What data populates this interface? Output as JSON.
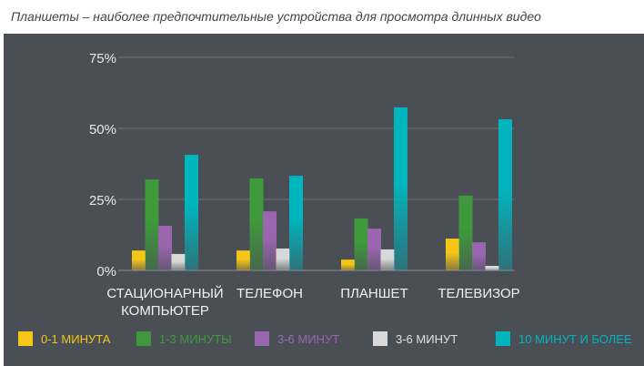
{
  "chart_data": {
    "type": "bar",
    "title": "Планшеты – наиболее предпочтительные устройства для просмотра длинных видео",
    "categories": [
      [
        "СТАЦИОНАРНЫЙ",
        "КОМПЬЮТЕР"
      ],
      [
        "ТЕЛЕФОН"
      ],
      [
        "ПЛАНШЕТ"
      ],
      [
        "ТЕЛЕВИЗОР"
      ]
    ],
    "ylim": [
      0,
      75
    ],
    "yticks": [
      0,
      25,
      50,
      75
    ],
    "ytick_labels": [
      "0%",
      "25%",
      "50%",
      "75%"
    ],
    "grid": true,
    "legend_position": "bottom",
    "series": [
      {
        "name": "0-1 МИНУТА",
        "color": "#f5c518",
        "values": [
          7,
          7,
          3.8,
          11.2
        ]
      },
      {
        "name": "1-3 МИНУТЫ",
        "color": "#3f9a3c",
        "values": [
          32,
          32.4,
          18.3,
          26.3
        ]
      },
      {
        "name": "3-6 МИНУТ",
        "color": "#9a66b0",
        "values": [
          15.7,
          20.8,
          14.7,
          9.9
        ]
      },
      {
        "name": "3-6 МИНУТ",
        "color": "#d8d8d8",
        "values": [
          5.8,
          7.7,
          7.4,
          1.6
        ]
      },
      {
        "name": "10  МИНУТ И БОЛЕЕ",
        "color": "#00b5bd",
        "values": [
          40.7,
          33.3,
          57.4,
          53.2
        ]
      }
    ]
  }
}
